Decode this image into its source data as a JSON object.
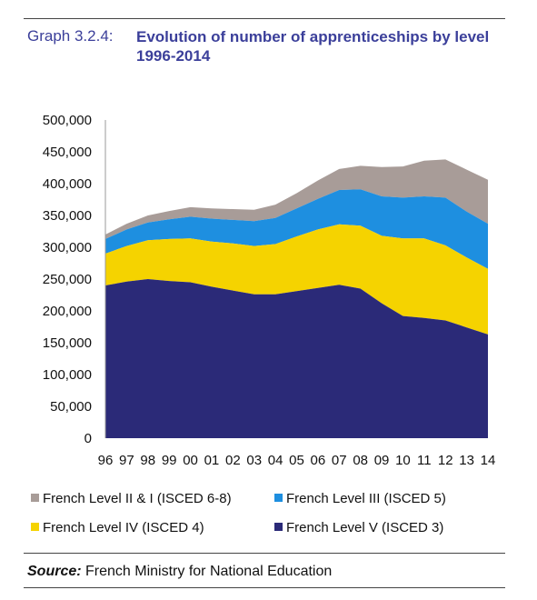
{
  "header": {
    "label": "Graph 3.2.4:",
    "title": "Evolution of number of apprenticeships by level 1996-2014"
  },
  "source": {
    "label": "Source:",
    "text": "French Ministry for National Education"
  },
  "chart_data": {
    "type": "area",
    "stacked": true,
    "categories": [
      "96",
      "97",
      "98",
      "99",
      "00",
      "01",
      "02",
      "03",
      "04",
      "05",
      "06",
      "07",
      "08",
      "09",
      "10",
      "11",
      "12",
      "13",
      "14"
    ],
    "ylim": [
      0,
      500000
    ],
    "yticks": [
      "0",
      "50,000",
      "100,000",
      "150,000",
      "200,000",
      "250,000",
      "300,000",
      "350,000",
      "400,000",
      "450,000",
      "500,000"
    ],
    "grid": false,
    "legend_position": "bottom",
    "series": [
      {
        "name": "French Level V (ISCED 3)",
        "color": "#2b2a78",
        "values": [
          240000,
          246000,
          250000,
          247000,
          245000,
          238000,
          232000,
          226000,
          226000,
          231000,
          236000,
          241000,
          235000,
          212000,
          192000,
          189000,
          185000,
          174000,
          163000
        ]
      },
      {
        "name": "French Level IV (ISCED 4)",
        "color": "#f5d300",
        "values": [
          50000,
          56000,
          61000,
          66000,
          69000,
          71000,
          74000,
          76000,
          79000,
          86000,
          92000,
          95000,
          99000,
          106000,
          122000,
          125000,
          118000,
          110000,
          103000
        ]
      },
      {
        "name": "French Level III (ISCED 5)",
        "color": "#1e8fe0",
        "values": [
          23000,
          26000,
          28000,
          31000,
          34000,
          36000,
          37000,
          39000,
          41000,
          44000,
          48000,
          54000,
          57000,
          62000,
          64000,
          66000,
          75000,
          72000,
          71000
        ]
      },
      {
        "name": "French Level II & I (ISCED 6-8)",
        "color": "#a89c98",
        "values": [
          7000,
          9000,
          11000,
          13000,
          15000,
          16000,
          17000,
          18000,
          21000,
          24000,
          29000,
          33000,
          37000,
          46000,
          49000,
          56000,
          60000,
          66000,
          69000
        ]
      }
    ]
  }
}
